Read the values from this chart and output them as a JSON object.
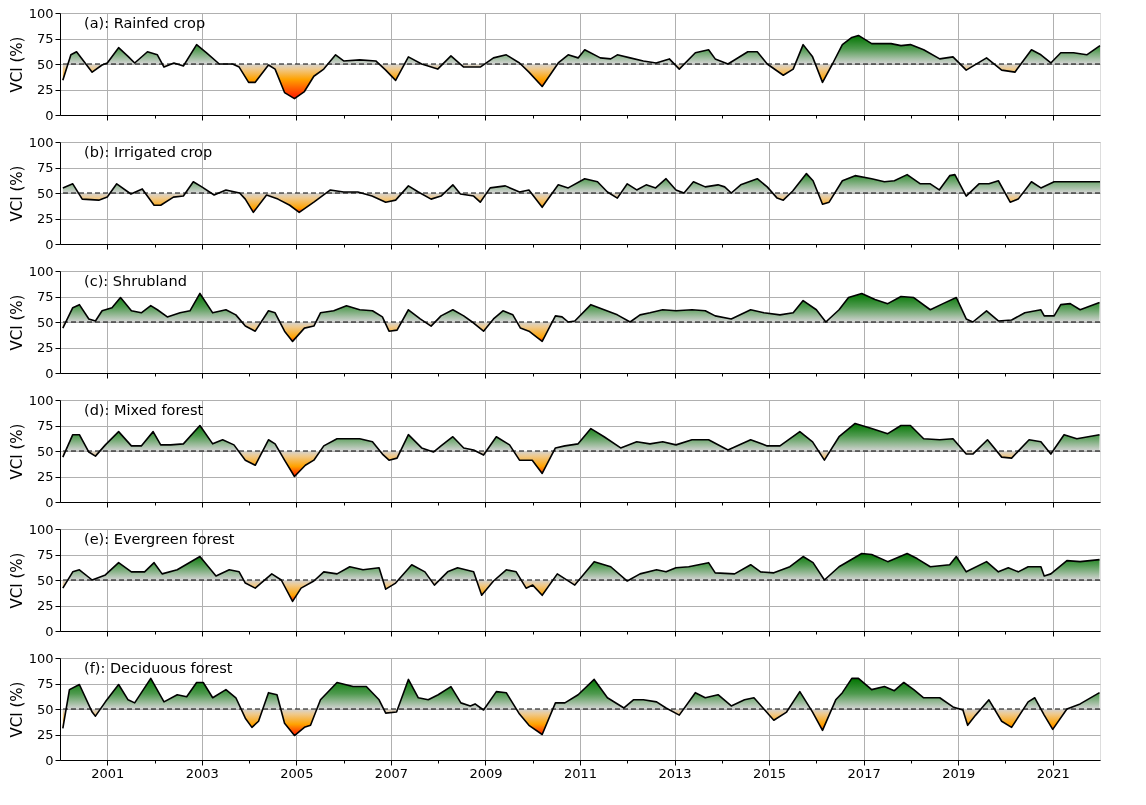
{
  "chart_data": [
    {
      "type": "line",
      "title": "(a): Rainfed crop",
      "ylabel": "VCI (%)",
      "xlim": [
        2000,
        2022
      ],
      "ylim": [
        0,
        100
      ],
      "yticks": [
        0,
        25,
        50,
        75,
        100
      ],
      "grid": true,
      "tick_labels": "y",
      "xticks": [
        2001,
        {
          "value": 2002,
          "label": null
        },
        2003,
        {
          "value": 2004,
          "label": null
        },
        2005,
        {
          "value": 2006,
          "label": null
        },
        2007,
        {
          "value": 2008,
          "label": null
        },
        2009,
        {
          "value": 2010,
          "label": null
        },
        2011,
        {
          "value": 2012,
          "label": null
        },
        2013,
        {
          "value": 2014,
          "label": null
        },
        2015,
        {
          "value": 2016,
          "label": null
        },
        2017,
        {
          "value": 2018,
          "label": null
        },
        2019,
        {
          "value": 2020,
          "label": null
        },
        2021
      ],
      "ref_lines": [
        {
          "axis": "y",
          "value": 50,
          "line_style": "dashed",
          "color": "#000000"
        }
      ],
      "x": [
        2000.06,
        2000.23,
        2000.35,
        2000.68,
        2000.89,
        2001.0,
        2001.24,
        2001.45,
        2001.58,
        2001.85,
        2002.06,
        2002.2,
        2002.41,
        2002.61,
        2002.89,
        2003.1,
        2003.37,
        2003.65,
        2003.79,
        2003.99,
        2004.13,
        2004.41,
        2004.55,
        2004.75,
        2004.96,
        2005.17,
        2005.37,
        2005.58,
        2005.83,
        2006.0,
        2006.34,
        2006.68,
        2006.89,
        2007.1,
        2007.37,
        2007.65,
        2007.99,
        2008.27,
        2008.54,
        2008.89,
        2009.17,
        2009.44,
        2009.72,
        2009.92,
        2010.2,
        2010.54,
        2010.75,
        2010.96,
        2011.1,
        2011.43,
        2011.65,
        2011.79,
        2012.06,
        2012.34,
        2012.61,
        2012.89,
        2013.1,
        2013.44,
        2013.72,
        2013.86,
        2014.13,
        2014.55,
        2014.75,
        2014.96,
        2015.3,
        2015.51,
        2015.72,
        2015.92,
        2016.13,
        2016.34,
        2016.55,
        2016.75,
        2016.89,
        2017.17,
        2017.58,
        2017.79,
        2017.99,
        2018.27,
        2018.61,
        2018.89,
        2019.17,
        2019.6,
        2019.92,
        2020.2,
        2020.55,
        2020.75,
        2020.96,
        2021.17,
        2021.44,
        2021.72,
        2022.0
      ],
      "series": [
        {
          "color": "#000000",
          "values": [
            34,
            59,
            62,
            42,
            49,
            51,
            66,
            57,
            51,
            62,
            59,
            47,
            51,
            48,
            69,
            61,
            50,
            50,
            47,
            32,
            32,
            49,
            45,
            22,
            16,
            23,
            38,
            45,
            59,
            53,
            54,
            53,
            44,
            34,
            57,
            50,
            45,
            58,
            47,
            47,
            56,
            59,
            51,
            42,
            28,
            51,
            59,
            56,
            64,
            56,
            55,
            59,
            56,
            53,
            51,
            55,
            45,
            61,
            64,
            55,
            50,
            62,
            62,
            50,
            39,
            45,
            69,
            57,
            32,
            50,
            69,
            76,
            78,
            70,
            70,
            68,
            69,
            64,
            55,
            57,
            44,
            56,
            44,
            42,
            64,
            59,
            51,
            61,
            61,
            59,
            68
          ]
        }
      ]
    },
    {
      "type": "line",
      "title": "(b): Irrigated crop",
      "ylabel": "VCI (%)",
      "xlim": [
        2000,
        2022
      ],
      "ylim": [
        0,
        100
      ],
      "yticks": [
        0,
        25,
        50,
        75,
        100
      ],
      "grid": true,
      "tick_labels": "y",
      "xticks": [
        2001,
        {
          "value": 2002,
          "label": null
        },
        2003,
        {
          "value": 2004,
          "label": null
        },
        2005,
        {
          "value": 2006,
          "label": null
        },
        2007,
        {
          "value": 2008,
          "label": null
        },
        2009,
        {
          "value": 2010,
          "label": null
        },
        2011,
        {
          "value": 2012,
          "label": null
        },
        2013,
        {
          "value": 2014,
          "label": null
        },
        2015,
        {
          "value": 2016,
          "label": null
        },
        2017,
        {
          "value": 2018,
          "label": null
        },
        2019,
        {
          "value": 2020,
          "label": null
        },
        2021
      ],
      "ref_lines": [
        {
          "axis": "y",
          "value": 50,
          "line_style": "dashed",
          "color": "#000000"
        }
      ],
      "x": [
        2000.06,
        2000.27,
        2000.47,
        2000.82,
        2001.0,
        2001.2,
        2001.5,
        2001.74,
        2001.99,
        2002.13,
        2002.4,
        2002.61,
        2002.82,
        2003.0,
        2003.26,
        2003.51,
        2003.8,
        2003.92,
        2004.09,
        2004.37,
        2004.61,
        2004.86,
        2005.06,
        2005.37,
        2005.72,
        2006.0,
        2006.3,
        2006.6,
        2006.89,
        2007.1,
        2007.37,
        2007.58,
        2007.85,
        2008.06,
        2008.31,
        2008.47,
        2008.75,
        2008.89,
        2009.1,
        2009.42,
        2009.72,
        2009.92,
        2010.2,
        2010.54,
        2010.75,
        2011.1,
        2011.37,
        2011.58,
        2011.79,
        2012.0,
        2012.2,
        2012.4,
        2012.6,
        2012.82,
        2013.03,
        2013.2,
        2013.4,
        2013.65,
        2013.92,
        2014.06,
        2014.2,
        2014.4,
        2014.75,
        2014.96,
        2015.17,
        2015.3,
        2015.5,
        2015.79,
        2015.93,
        2016.13,
        2016.27,
        2016.55,
        2016.82,
        2017.17,
        2017.44,
        2017.65,
        2017.92,
        2018.2,
        2018.41,
        2018.6,
        2018.82,
        2018.93,
        2019.17,
        2019.44,
        2019.65,
        2019.85,
        2020.1,
        2020.27,
        2020.55,
        2020.75,
        2021.03,
        2021.3,
        2021.65,
        2022.0
      ],
      "series": [
        {
          "color": "#000000",
          "values": [
            55,
            59,
            44,
            43,
            46,
            59,
            49,
            54,
            38,
            38,
            46,
            47,
            61,
            56,
            48,
            53,
            50,
            44,
            31,
            48,
            44,
            38,
            31,
            41,
            53,
            51,
            51,
            47,
            41,
            43,
            57,
            51,
            44,
            47,
            58,
            49,
            47,
            41,
            55,
            57,
            51,
            53,
            36,
            58,
            55,
            64,
            61,
            51,
            45,
            59,
            53,
            58,
            55,
            64,
            53,
            50,
            61,
            56,
            58,
            56,
            50,
            58,
            64,
            56,
            45,
            43,
            52,
            69,
            62,
            39,
            41,
            62,
            67,
            64,
            61,
            62,
            68,
            59,
            59,
            53,
            67,
            68,
            47,
            59,
            59,
            62,
            41,
            44,
            61,
            55,
            61,
            61,
            61,
            61
          ]
        }
      ]
    },
    {
      "type": "line",
      "title": "(c): Shrubland",
      "ylabel": "VCI (%)",
      "xlim": [
        2000,
        2022
      ],
      "ylim": [
        0,
        100
      ],
      "yticks": [
        0,
        25,
        50,
        75,
        100
      ],
      "grid": true,
      "tick_labels": "y",
      "xticks": [
        2001,
        {
          "value": 2002,
          "label": null
        },
        2003,
        {
          "value": 2004,
          "label": null
        },
        2005,
        {
          "value": 2006,
          "label": null
        },
        2007,
        {
          "value": 2008,
          "label": null
        },
        2009,
        {
          "value": 2010,
          "label": null
        },
        2011,
        {
          "value": 2012,
          "label": null
        },
        2013,
        {
          "value": 2014,
          "label": null
        },
        2015,
        {
          "value": 2016,
          "label": null
        },
        2017,
        {
          "value": 2018,
          "label": null
        },
        2019,
        {
          "value": 2020,
          "label": null
        },
        2021
      ],
      "ref_lines": [
        {
          "axis": "y",
          "value": 50,
          "line_style": "dashed",
          "color": "#000000"
        }
      ],
      "x": [
        2000.06,
        2000.27,
        2000.41,
        2000.61,
        2000.75,
        2000.89,
        2001.1,
        2001.28,
        2001.51,
        2001.72,
        2001.92,
        2002.06,
        2002.27,
        2002.54,
        2002.75,
        2002.96,
        2003.23,
        2003.51,
        2003.72,
        2003.92,
        2004.13,
        2004.41,
        2004.55,
        2004.75,
        2004.92,
        2005.17,
        2005.37,
        2005.51,
        2005.79,
        2006.06,
        2006.34,
        2006.61,
        2006.82,
        2006.96,
        2007.13,
        2007.37,
        2007.62,
        2007.85,
        2008.06,
        2008.31,
        2008.54,
        2008.75,
        2008.96,
        2009.17,
        2009.37,
        2009.58,
        2009.74,
        2009.92,
        2010.2,
        2010.48,
        2010.62,
        2010.75,
        2010.89,
        2011.23,
        2011.51,
        2011.79,
        2012.06,
        2012.27,
        2012.48,
        2012.75,
        2013.03,
        2013.37,
        2013.65,
        2013.86,
        2014.2,
        2014.61,
        2014.89,
        2015.23,
        2015.51,
        2015.72,
        2016.0,
        2016.2,
        2016.48,
        2016.68,
        2016.96,
        2017.24,
        2017.51,
        2017.79,
        2018.06,
        2018.41,
        2018.68,
        2018.96,
        2019.17,
        2019.31,
        2019.6,
        2019.85,
        2020.13,
        2020.41,
        2020.75,
        2020.82,
        2021.03,
        2021.17,
        2021.37,
        2021.58,
        2021.99
      ],
      "series": [
        {
          "color": "#000000",
          "values": [
            44,
            64,
            67,
            53,
            51,
            61,
            64,
            74,
            61,
            59,
            66,
            62,
            55,
            59,
            61,
            78,
            59,
            62,
            57,
            46,
            41,
            61,
            59,
            41,
            31,
            44,
            46,
            59,
            61,
            66,
            62,
            61,
            55,
            41,
            42,
            62,
            53,
            46,
            56,
            62,
            56,
            49,
            41,
            53,
            61,
            57,
            44,
            41,
            31,
            56,
            55,
            50,
            51,
            67,
            62,
            57,
            50,
            57,
            59,
            62,
            61,
            62,
            61,
            56,
            53,
            62,
            59,
            57,
            59,
            71,
            62,
            50,
            62,
            74,
            78,
            72,
            68,
            75,
            74,
            62,
            68,
            74,
            53,
            50,
            61,
            51,
            52,
            59,
            62,
            56,
            56,
            67,
            68,
            62,
            69
          ]
        }
      ]
    },
    {
      "type": "line",
      "title": "(d): Mixed forest",
      "ylabel": "VCI (%)",
      "xlim": [
        2000,
        2022
      ],
      "ylim": [
        0,
        100
      ],
      "yticks": [
        0,
        25,
        50,
        75,
        100
      ],
      "grid": true,
      "tick_labels": "y",
      "xticks": [
        2001,
        {
          "value": 2002,
          "label": null
        },
        2003,
        {
          "value": 2004,
          "label": null
        },
        2005,
        {
          "value": 2006,
          "label": null
        },
        2007,
        {
          "value": 2008,
          "label": null
        },
        2009,
        {
          "value": 2010,
          "label": null
        },
        2011,
        {
          "value": 2012,
          "label": null
        },
        2013,
        {
          "value": 2014,
          "label": null
        },
        2015,
        {
          "value": 2016,
          "label": null
        },
        2017,
        {
          "value": 2018,
          "label": null
        },
        2019,
        {
          "value": 2020,
          "label": null
        },
        2021
      ],
      "ref_lines": [
        {
          "axis": "y",
          "value": 50,
          "line_style": "dashed",
          "color": "#000000"
        }
      ],
      "x": [
        2000.06,
        2000.27,
        2000.41,
        2000.61,
        2000.75,
        2000.96,
        2001.24,
        2001.51,
        2001.72,
        2001.97,
        2002.13,
        2002.34,
        2002.61,
        2002.96,
        2003.23,
        2003.44,
        2003.68,
        2003.92,
        2004.13,
        2004.41,
        2004.55,
        2004.75,
        2004.96,
        2005.19,
        2005.37,
        2005.58,
        2005.86,
        2006.34,
        2006.61,
        2006.82,
        2006.96,
        2007.13,
        2007.37,
        2007.65,
        2007.9,
        2008.06,
        2008.31,
        2008.54,
        2008.75,
        2008.96,
        2009.23,
        2009.51,
        2009.72,
        2009.99,
        2010.2,
        2010.48,
        2010.68,
        2010.96,
        2011.23,
        2011.51,
        2011.86,
        2012.2,
        2012.48,
        2012.75,
        2013.03,
        2013.37,
        2013.72,
        2014.13,
        2014.61,
        2014.96,
        2015.23,
        2015.65,
        2015.92,
        2016.17,
        2016.48,
        2016.82,
        2017.17,
        2017.51,
        2017.79,
        2017.99,
        2018.27,
        2018.61,
        2018.89,
        2019.17,
        2019.31,
        2019.62,
        2019.92,
        2020.13,
        2020.5,
        2020.75,
        2020.96,
        2021.24,
        2021.51,
        2021.99
      ],
      "series": [
        {
          "color": "#000000",
          "values": [
            44,
            66,
            66,
            49,
            45,
            56,
            69,
            55,
            55,
            69,
            56,
            56,
            57,
            75,
            57,
            61,
            56,
            41,
            36,
            61,
            57,
            41,
            25,
            36,
            41,
            55,
            62,
            62,
            59,
            47,
            41,
            43,
            66,
            53,
            49,
            55,
            64,
            53,
            51,
            46,
            64,
            56,
            41,
            41,
            28,
            53,
            55,
            57,
            72,
            64,
            53,
            59,
            57,
            59,
            56,
            61,
            61,
            51,
            61,
            55,
            55,
            69,
            59,
            41,
            64,
            77,
            72,
            67,
            75,
            75,
            62,
            61,
            62,
            47,
            47,
            61,
            44,
            43,
            61,
            59,
            47,
            66,
            62,
            66
          ]
        }
      ]
    },
    {
      "type": "line",
      "title": "(e): Evergreen forest",
      "ylabel": "VCI (%)",
      "xlim": [
        2000,
        2022
      ],
      "ylim": [
        0,
        100
      ],
      "yticks": [
        0,
        25,
        50,
        75,
        100
      ],
      "grid": true,
      "tick_labels": "y",
      "xticks": [
        2001,
        {
          "value": 2002,
          "label": null
        },
        2003,
        {
          "value": 2004,
          "label": null
        },
        2005,
        {
          "value": 2006,
          "label": null
        },
        2007,
        {
          "value": 2008,
          "label": null
        },
        2009,
        {
          "value": 2010,
          "label": null
        },
        2011,
        {
          "value": 2012,
          "label": null
        },
        2013,
        {
          "value": 2014,
          "label": null
        },
        2015,
        {
          "value": 2016,
          "label": null
        },
        2017,
        {
          "value": 2018,
          "label": null
        },
        2019,
        {
          "value": 2020,
          "label": null
        },
        2021
      ],
      "ref_lines": [
        {
          "axis": "y",
          "value": 50,
          "line_style": "dashed",
          "color": "#000000"
        }
      ],
      "x": [
        2000.06,
        2000.27,
        2000.41,
        2000.68,
        2000.96,
        2001.24,
        2001.51,
        2001.79,
        2001.99,
        2002.16,
        2002.48,
        2002.96,
        2003.3,
        2003.58,
        2003.79,
        2003.92,
        2004.13,
        2004.48,
        2004.68,
        2004.92,
        2005.1,
        2005.37,
        2005.58,
        2005.86,
        2006.13,
        2006.41,
        2006.75,
        2006.89,
        2007.1,
        2007.44,
        2007.72,
        2007.92,
        2008.2,
        2008.41,
        2008.75,
        2008.92,
        2009.17,
        2009.44,
        2009.65,
        2009.86,
        2010.0,
        2010.2,
        2010.52,
        2010.89,
        2011.3,
        2011.65,
        2012.0,
        2012.27,
        2012.62,
        2012.82,
        2013.03,
        2013.3,
        2013.72,
        2013.86,
        2014.27,
        2014.61,
        2014.82,
        2015.1,
        2015.44,
        2015.72,
        2015.93,
        2016.17,
        2016.48,
        2016.96,
        2017.17,
        2017.51,
        2017.92,
        2018.13,
        2018.41,
        2018.82,
        2018.96,
        2019.17,
        2019.6,
        2019.85,
        2020.06,
        2020.27,
        2020.48,
        2020.75,
        2020.82,
        2020.96,
        2021.3,
        2021.58,
        2021.99
      ],
      "series": [
        {
          "color": "#000000",
          "values": [
            42,
            58,
            60,
            50,
            55,
            67,
            58,
            58,
            67,
            56,
            60,
            73,
            54,
            60,
            58,
            47,
            42,
            56,
            50,
            29,
            42,
            49,
            58,
            56,
            63,
            60,
            62,
            41,
            47,
            65,
            58,
            45,
            58,
            62,
            58,
            35,
            49,
            60,
            58,
            42,
            45,
            35,
            56,
            45,
            68,
            63,
            49,
            56,
            60,
            58,
            62,
            63,
            67,
            57,
            56,
            65,
            58,
            57,
            63,
            73,
            67,
            50,
            63,
            76,
            75,
            68,
            76,
            71,
            63,
            65,
            73,
            58,
            68,
            58,
            62,
            58,
            63,
            63,
            54,
            56,
            69,
            68,
            70
          ]
        }
      ]
    },
    {
      "type": "line",
      "title": "(f): Deciduous forest",
      "ylabel": "VCI (%)",
      "xlim": [
        2000,
        2022
      ],
      "ylim": [
        0,
        100
      ],
      "yticks": [
        0,
        25,
        50,
        75,
        100
      ],
      "grid": true,
      "xticks": [
        2001,
        {
          "value": 2002,
          "label": null
        },
        2003,
        {
          "value": 2004,
          "label": null
        },
        2005,
        {
          "value": 2006,
          "label": null
        },
        2007,
        {
          "value": 2008,
          "label": null
        },
        2009,
        {
          "value": 2010,
          "label": null
        },
        2011,
        {
          "value": 2012,
          "label": null
        },
        2013,
        {
          "value": 2014,
          "label": null
        },
        2015,
        {
          "value": 2016,
          "label": null
        },
        2017,
        {
          "value": 2018,
          "label": null
        },
        2019,
        {
          "value": 2020,
          "label": null
        },
        2021
      ],
      "ref_lines": [
        {
          "axis": "y",
          "value": 50,
          "line_style": "dashed",
          "color": "#000000"
        }
      ],
      "x": [
        2000.06,
        2000.2,
        2000.41,
        2000.68,
        2000.75,
        2000.96,
        2001.24,
        2001.44,
        2001.58,
        2001.92,
        2002.2,
        2002.48,
        2002.68,
        2002.89,
        2003.03,
        2003.23,
        2003.51,
        2003.72,
        2003.92,
        2004.06,
        2004.2,
        2004.41,
        2004.59,
        2004.75,
        2004.96,
        2005.17,
        2005.3,
        2005.51,
        2005.86,
        2006.2,
        2006.48,
        2006.75,
        2006.89,
        2007.12,
        2007.37,
        2007.58,
        2007.79,
        2008.0,
        2008.27,
        2008.48,
        2008.68,
        2008.78,
        2008.96,
        2009.23,
        2009.44,
        2009.72,
        2009.92,
        2010.2,
        2010.48,
        2010.68,
        2010.96,
        2011.3,
        2011.58,
        2011.93,
        2012.13,
        2012.34,
        2012.62,
        2012.82,
        2013.1,
        2013.44,
        2013.65,
        2013.92,
        2014.2,
        2014.48,
        2014.68,
        2014.89,
        2015.1,
        2015.37,
        2015.65,
        2015.92,
        2016.13,
        2016.41,
        2016.55,
        2016.75,
        2016.89,
        2017.17,
        2017.44,
        2017.65,
        2017.85,
        2018.06,
        2018.27,
        2018.61,
        2018.89,
        2019.1,
        2019.2,
        2019.37,
        2019.65,
        2019.92,
        2020.13,
        2020.48,
        2020.62,
        2020.82,
        2021.0,
        2021.3,
        2021.58,
        2021.99
      ],
      "series": [
        {
          "color": "#000000",
          "values": [
            31,
            69,
            74,
            47,
            43,
            57,
            74,
            59,
            56,
            80,
            57,
            64,
            62,
            76,
            76,
            61,
            69,
            61,
            41,
            32,
            38,
            66,
            64,
            36,
            24,
            32,
            34,
            59,
            76,
            72,
            72,
            59,
            46,
            47,
            79,
            61,
            59,
            64,
            72,
            56,
            53,
            55,
            49,
            67,
            66,
            45,
            34,
            25,
            56,
            56,
            64,
            79,
            61,
            51,
            59,
            59,
            57,
            51,
            44,
            66,
            61,
            64,
            53,
            59,
            61,
            50,
            39,
            47,
            67,
            47,
            29,
            59,
            66,
            80,
            80,
            69,
            72,
            68,
            76,
            69,
            61,
            61,
            52,
            49,
            34,
            44,
            59,
            38,
            32,
            57,
            61,
            44,
            30,
            50,
            55,
            66
          ]
        }
      ]
    }
  ]
}
